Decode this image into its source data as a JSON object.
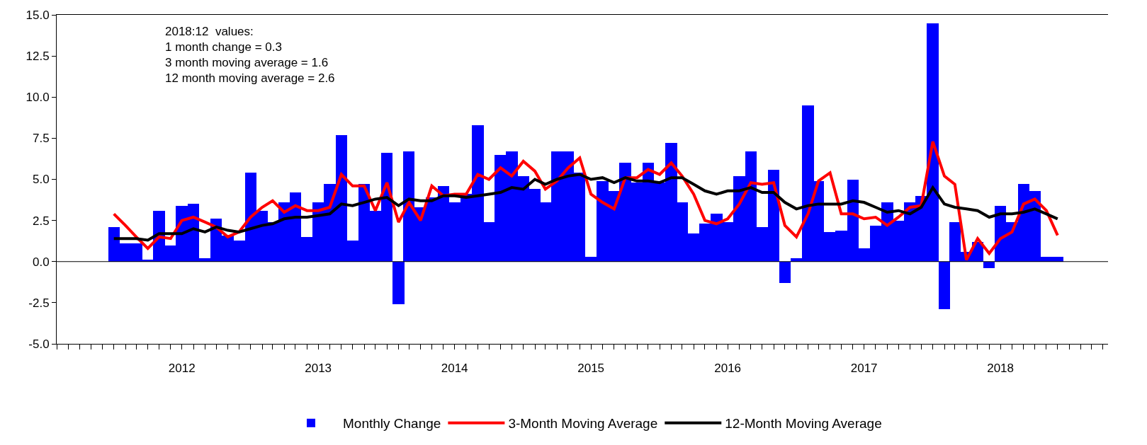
{
  "chart_data": {
    "type": "bar",
    "x": [
      "2012-01",
      "2012-02",
      "2012-03",
      "2012-04",
      "2012-05",
      "2012-06",
      "2012-07",
      "2012-08",
      "2012-09",
      "2012-10",
      "2012-11",
      "2012-12",
      "2013-01",
      "2013-02",
      "2013-03",
      "2013-04",
      "2013-05",
      "2013-06",
      "2013-07",
      "2013-08",
      "2013-09",
      "2013-10",
      "2013-11",
      "2013-12",
      "2014-01",
      "2014-02",
      "2014-03",
      "2014-04",
      "2014-05",
      "2014-06",
      "2014-07",
      "2014-08",
      "2014-09",
      "2014-10",
      "2014-11",
      "2014-12",
      "2015-01",
      "2015-02",
      "2015-03",
      "2015-04",
      "2015-05",
      "2015-06",
      "2015-07",
      "2015-08",
      "2015-09",
      "2015-10",
      "2015-11",
      "2015-12",
      "2016-01",
      "2016-02",
      "2016-03",
      "2016-04",
      "2016-05",
      "2016-06",
      "2016-07",
      "2016-08",
      "2016-09",
      "2016-10",
      "2016-11",
      "2016-12",
      "2017-01",
      "2017-02",
      "2017-03",
      "2017-04",
      "2017-05",
      "2017-06",
      "2017-07",
      "2017-08",
      "2017-09",
      "2017-10",
      "2017-11",
      "2017-12",
      "2018-01",
      "2018-02",
      "2018-03",
      "2018-04",
      "2018-05",
      "2018-06",
      "2018-07",
      "2018-08",
      "2018-09",
      "2018-10",
      "2018-11",
      "2018-12"
    ],
    "series": [
      {
        "name": "Monthly Change",
        "color": "#0000ff",
        "values": [
          2.1,
          1.1,
          1.1,
          0.1,
          3.1,
          1.0,
          3.4,
          3.5,
          0.2,
          2.6,
          1.6,
          1.3,
          5.4,
          3.1,
          2.4,
          3.6,
          4.2,
          1.5,
          3.6,
          4.7,
          7.7,
          1.3,
          4.7,
          3.1,
          6.6,
          -2.6,
          6.7,
          3.3,
          3.9,
          4.6,
          3.6,
          4.1,
          8.3,
          2.4,
          6.5,
          6.7,
          5.2,
          4.4,
          3.6,
          6.7,
          6.7,
          5.4,
          0.3,
          4.9,
          4.3,
          6.0,
          4.8,
          6.0,
          4.8,
          7.2,
          3.6,
          1.7,
          2.3,
          2.9,
          2.4,
          5.2,
          6.7,
          2.1,
          5.6,
          -1.3,
          0.2,
          9.5,
          4.9,
          1.8,
          1.9,
          5.0,
          0.8,
          2.2,
          3.6,
          2.5,
          3.6,
          4.0,
          14.5,
          -2.9,
          2.4,
          0.6,
          1.2,
          -0.4,
          3.4,
          2.4,
          4.7,
          4.3,
          0.3,
          0.3
        ]
      },
      {
        "name": "3-Month Moving Average",
        "type": "line",
        "color": "#ff0000",
        "values": [
          2.9,
          2.2,
          1.5,
          0.8,
          1.5,
          1.4,
          2.5,
          2.7,
          2.4,
          2.1,
          1.5,
          1.8,
          2.7,
          3.3,
          3.7,
          3.0,
          3.4,
          3.1,
          3.1,
          3.3,
          5.3,
          4.6,
          4.6,
          3.1,
          4.8,
          2.4,
          3.6,
          2.5,
          4.6,
          4.0,
          4.1,
          4.1,
          5.3,
          5.0,
          5.7,
          5.2,
          6.1,
          5.5,
          4.4,
          4.9,
          5.7,
          6.3,
          4.1,
          3.6,
          3.2,
          5.1,
          5.1,
          5.6,
          5.3,
          6.0,
          5.2,
          4.1,
          2.5,
          2.3,
          2.6,
          3.5,
          4.8,
          4.7,
          4.8,
          2.2,
          1.5,
          2.9,
          4.9,
          5.4,
          2.9,
          2.9,
          2.6,
          2.7,
          2.2,
          2.7,
          3.3,
          3.4,
          7.3,
          5.2,
          4.7,
          0.1,
          1.4,
          0.5,
          1.4,
          1.8,
          3.5,
          3.8,
          3.1,
          1.6
        ]
      },
      {
        "name": "12-Month Moving Average",
        "type": "line",
        "color": "#000000",
        "values": [
          1.4,
          1.4,
          1.4,
          1.3,
          1.7,
          1.7,
          1.7,
          2.0,
          1.8,
          2.1,
          1.9,
          1.8,
          2.0,
          2.2,
          2.3,
          2.6,
          2.7,
          2.7,
          2.8,
          2.9,
          3.5,
          3.4,
          3.6,
          3.8,
          3.9,
          3.4,
          3.8,
          3.7,
          3.7,
          4.0,
          4.0,
          3.9,
          4.0,
          4.1,
          4.2,
          4.5,
          4.4,
          5.0,
          4.7,
          5.0,
          5.2,
          5.3,
          5.0,
          5.1,
          4.8,
          5.1,
          4.9,
          4.9,
          4.8,
          5.1,
          5.1,
          4.7,
          4.3,
          4.1,
          4.3,
          4.3,
          4.5,
          4.2,
          4.2,
          3.6,
          3.2,
          3.4,
          3.5,
          3.5,
          3.5,
          3.7,
          3.6,
          3.3,
          3.0,
          3.1,
          2.9,
          3.3,
          4.5,
          3.5,
          3.3,
          3.2,
          3.1,
          2.7,
          2.9,
          2.9,
          3.0,
          3.2,
          2.9,
          2.6
        ]
      }
    ],
    "xlim": [
      "2011-08",
      "2019-04-15"
    ],
    "xticks": [
      {
        "value": "2012-01",
        "label": null
      },
      {
        "value": "2012-07",
        "label": "2012"
      },
      {
        "value": "2013-01",
        "label": null
      },
      {
        "value": "2013-07",
        "label": "2013"
      },
      {
        "value": "2014-01",
        "label": null
      },
      {
        "value": "2014-07",
        "label": "2014"
      },
      {
        "value": "2015-01",
        "label": null
      },
      {
        "value": "2015-07",
        "label": "2015"
      },
      {
        "value": "2016-01",
        "label": null
      },
      {
        "value": "2016-07",
        "label": "2016"
      },
      {
        "value": "2017-01",
        "label": null
      },
      {
        "value": "2017-07",
        "label": "2017"
      },
      {
        "value": "2018-01",
        "label": null
      },
      {
        "value": "2018-07",
        "label": "2018"
      },
      {
        "value": "2019-01",
        "label": null
      }
    ],
    "ylim": [
      -5,
      15
    ],
    "yticks": [
      {
        "value": -5,
        "label": "-5.0"
      },
      {
        "value": -2.5,
        "label": "-2.5"
      },
      {
        "value": 0,
        "label": "0.0"
      },
      {
        "value": 2.5,
        "label": "2.5"
      },
      {
        "value": 5,
        "label": "5.0"
      },
      {
        "value": 7.5,
        "label": "7.5"
      },
      {
        "value": 10,
        "label": "10.0"
      },
      {
        "value": 12.5,
        "label": "12.5"
      },
      {
        "value": 15,
        "label": "15.0"
      }
    ],
    "annotations": [
      "2018:12  values:\n1 month change = 0.3\n3 month moving average = 1.6\n12 month moving average = 2.6"
    ],
    "ref_lines": [
      {
        "axis": "y",
        "value": 0,
        "color": "#000000"
      }
    ],
    "legend": "bottom",
    "marker": "none",
    "line_style": "solid"
  }
}
